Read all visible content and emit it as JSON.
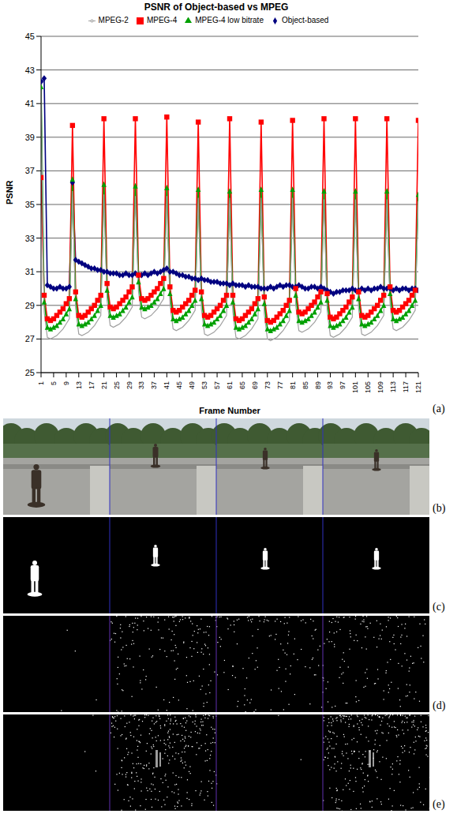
{
  "chart_data": {
    "type": "line",
    "title": "PSNR of Object-based vs MPEG",
    "x_label": "Frame Number",
    "y_label": "PSNR",
    "x": [
      1,
      2,
      3,
      4,
      5,
      6,
      7,
      8,
      9,
      10,
      11,
      12,
      13,
      14,
      15,
      16,
      17,
      18,
      19,
      20,
      21,
      22,
      23,
      24,
      25,
      26,
      27,
      28,
      29,
      30,
      31,
      32,
      33,
      34,
      35,
      36,
      37,
      38,
      39,
      40,
      41,
      42,
      43,
      44,
      45,
      46,
      47,
      48,
      49,
      50,
      51,
      52,
      53,
      54,
      55,
      56,
      57,
      58,
      59,
      60,
      61,
      62,
      63,
      64,
      65,
      66,
      67,
      68,
      69,
      70,
      71,
      72,
      73,
      74,
      75,
      76,
      77,
      78,
      79,
      80,
      81,
      82,
      83,
      84,
      85,
      86,
      87,
      88,
      89,
      90,
      91,
      92,
      93,
      94,
      95,
      96,
      97,
      98,
      99,
      100,
      101,
      102,
      103,
      104,
      105,
      106,
      107,
      108,
      109,
      110,
      111,
      112,
      113,
      114,
      115,
      116,
      117,
      118,
      119,
      120,
      121
    ],
    "xlim": [
      1,
      121
    ],
    "xticks": [
      1,
      5,
      9,
      13,
      17,
      21,
      25,
      29,
      33,
      37,
      41,
      45,
      49,
      53,
      57,
      61,
      65,
      69,
      73,
      77,
      81,
      85,
      89,
      93,
      97,
      101,
      105,
      109,
      113,
      117,
      121
    ],
    "ylim": [
      25,
      45
    ],
    "yticks": [
      25,
      27,
      29,
      31,
      33,
      35,
      37,
      39,
      41,
      43,
      45
    ],
    "grid": true,
    "legend": "top",
    "series": [
      {
        "name": "Object-based",
        "color": "#000080",
        "marker": "diamond",
        "values": [
          42.3,
          42.5,
          30.2,
          30.1,
          30.0,
          30.0,
          30.1,
          30.0,
          30.0,
          30.1,
          36.3,
          31.7,
          31.6,
          31.5,
          31.4,
          31.3,
          31.2,
          31.2,
          31.1,
          31.1,
          31.0,
          31.0,
          30.9,
          30.9,
          30.9,
          30.8,
          30.8,
          30.9,
          30.8,
          30.8,
          30.9,
          30.8,
          30.8,
          30.9,
          30.8,
          30.9,
          31.0,
          30.9,
          31.0,
          31.1,
          31.2,
          31.0,
          31.0,
          30.9,
          30.8,
          30.8,
          30.7,
          30.7,
          30.6,
          30.6,
          30.5,
          30.6,
          30.5,
          30.5,
          30.4,
          30.4,
          30.4,
          30.3,
          30.3,
          30.3,
          30.2,
          30.3,
          30.2,
          30.2,
          30.2,
          30.1,
          30.2,
          30.1,
          30.1,
          30.1,
          30.0,
          30.0,
          30.0,
          30.1,
          30.0,
          30.1,
          30.2,
          30.1,
          30.2,
          30.2,
          30.1,
          30.1,
          30.2,
          30.1,
          30.0,
          30.0,
          30.1,
          30.1,
          30.0,
          30.1,
          30.0,
          29.9,
          29.8,
          29.7,
          29.8,
          29.8,
          29.9,
          29.9,
          29.9,
          30.0,
          29.9,
          29.9,
          30.0,
          29.9,
          30.0,
          29.9,
          30.0,
          30.0,
          30.1,
          30.0,
          30.0,
          30.0,
          29.9,
          30.0,
          29.9,
          30.0,
          30.0,
          29.9,
          30.0,
          30.0,
          29.9
        ]
      },
      {
        "name": "MPEG-4",
        "color": "#ff0000",
        "marker": "square",
        "values": [
          36.6,
          29.6,
          28.2,
          28.1,
          28.2,
          28.4,
          28.6,
          28.8,
          29.1,
          29.4,
          39.7,
          29.8,
          28.4,
          28.3,
          28.4,
          28.6,
          28.8,
          29.0,
          29.3,
          29.6,
          40.1,
          30.3,
          28.9,
          28.8,
          28.9,
          29.1,
          29.3,
          29.5,
          29.8,
          30.1,
          40.1,
          30.8,
          29.4,
          29.3,
          29.4,
          29.6,
          29.8,
          30.0,
          30.3,
          30.6,
          40.2,
          30.1,
          28.7,
          28.6,
          28.7,
          28.9,
          29.1,
          29.3,
          29.6,
          29.9,
          39.9,
          29.8,
          28.4,
          28.3,
          28.4,
          28.6,
          28.8,
          29.0,
          29.3,
          29.6,
          40.1,
          29.6,
          28.2,
          28.1,
          28.2,
          28.4,
          28.6,
          28.8,
          29.1,
          29.4,
          39.9,
          29.5,
          28.1,
          28.0,
          28.1,
          28.3,
          28.5,
          28.7,
          29.0,
          29.3,
          40.0,
          30.0,
          28.6,
          28.5,
          28.6,
          28.8,
          29.0,
          29.2,
          29.5,
          29.8,
          40.1,
          29.7,
          28.3,
          28.2,
          28.3,
          28.5,
          28.7,
          28.9,
          29.2,
          29.5,
          40.1,
          29.8,
          28.4,
          28.3,
          28.4,
          28.6,
          28.8,
          29.0,
          29.3,
          29.6,
          40.1,
          30.1,
          28.7,
          28.6,
          28.7,
          28.9,
          29.1,
          29.3,
          29.6,
          29.9,
          40.0
        ]
      },
      {
        "name": "MPEG-4 low bitrate",
        "color": "#00a000",
        "marker": "triangle",
        "values": [
          42.0,
          29.2,
          27.7,
          27.6,
          27.7,
          27.8,
          28.0,
          28.2,
          28.5,
          28.8,
          36.5,
          29.4,
          27.9,
          27.8,
          27.9,
          28.0,
          28.2,
          28.4,
          28.7,
          29.0,
          36.2,
          29.9,
          28.4,
          28.3,
          28.4,
          28.5,
          28.7,
          28.9,
          29.2,
          29.5,
          36.1,
          30.4,
          28.9,
          28.8,
          28.9,
          29.0,
          29.2,
          29.4,
          29.7,
          30.0,
          36.0,
          29.7,
          28.2,
          28.1,
          28.2,
          28.3,
          28.5,
          28.7,
          29.0,
          29.3,
          35.9,
          29.4,
          27.9,
          27.8,
          27.9,
          28.0,
          28.2,
          28.4,
          28.7,
          29.0,
          35.8,
          29.2,
          27.7,
          27.6,
          27.7,
          27.8,
          28.0,
          28.2,
          28.5,
          28.8,
          35.9,
          29.1,
          27.6,
          27.5,
          27.6,
          27.7,
          27.9,
          28.1,
          28.4,
          28.7,
          35.9,
          29.6,
          28.1,
          28.0,
          28.1,
          28.2,
          28.4,
          28.6,
          28.9,
          29.2,
          35.8,
          29.3,
          27.8,
          27.7,
          27.8,
          27.9,
          28.1,
          28.3,
          28.6,
          28.9,
          35.8,
          29.4,
          27.9,
          27.8,
          27.9,
          28.0,
          28.2,
          28.4,
          28.7,
          29.0,
          35.8,
          29.7,
          28.2,
          28.1,
          28.2,
          28.3,
          28.5,
          28.7,
          29.0,
          29.3,
          35.6
        ]
      },
      {
        "name": "MPEG-2",
        "color": "#a0a0a0",
        "marker": "none",
        "values": [
          41.8,
          28.6,
          27.1,
          27.0,
          27.1,
          27.2,
          27.4,
          27.6,
          27.9,
          28.2,
          35.8,
          28.8,
          27.3,
          27.2,
          27.3,
          27.4,
          27.6,
          27.8,
          28.1,
          28.4,
          35.6,
          29.3,
          27.8,
          27.7,
          27.8,
          27.9,
          28.1,
          28.3,
          28.6,
          28.9,
          35.5,
          29.8,
          28.3,
          28.2,
          28.3,
          28.4,
          28.6,
          28.8,
          29.1,
          29.4,
          35.5,
          29.1,
          27.6,
          27.5,
          27.6,
          27.7,
          27.9,
          28.1,
          28.4,
          28.7,
          35.4,
          28.8,
          27.3,
          27.2,
          27.3,
          27.4,
          27.6,
          27.8,
          28.1,
          28.4,
          35.4,
          28.6,
          27.1,
          27.0,
          27.1,
          27.2,
          27.4,
          27.6,
          27.9,
          28.2,
          35.4,
          28.5,
          27.0,
          26.9,
          27.0,
          27.1,
          27.3,
          27.5,
          27.8,
          28.1,
          35.4,
          29.0,
          27.5,
          27.4,
          27.5,
          27.6,
          27.8,
          28.0,
          28.3,
          28.6,
          35.3,
          28.7,
          27.2,
          27.1,
          27.2,
          27.3,
          27.5,
          27.7,
          28.0,
          28.3,
          35.3,
          28.8,
          27.3,
          27.2,
          27.3,
          27.4,
          27.6,
          27.8,
          28.1,
          28.4,
          35.3,
          29.1,
          27.6,
          27.5,
          27.6,
          27.7,
          27.9,
          28.1,
          28.4,
          28.7,
          35.2
        ]
      }
    ]
  },
  "panels": {
    "labels": [
      "(a)",
      "(b)",
      "(c)",
      "(d)",
      "(e)"
    ]
  }
}
